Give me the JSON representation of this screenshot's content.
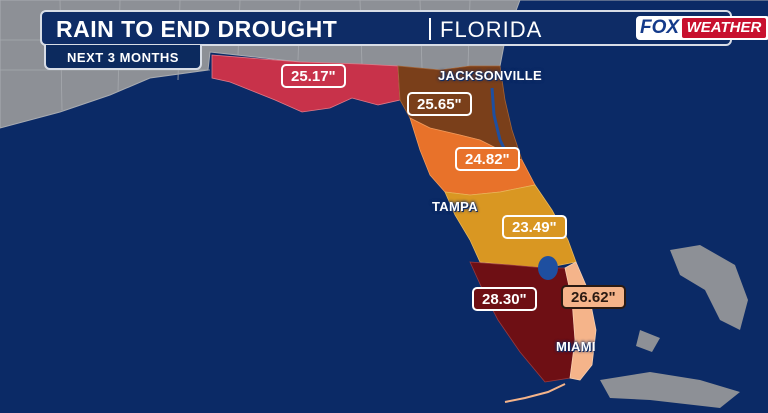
{
  "header": {
    "title": "RAIN TO END DROUGHT",
    "region": "FLORIDA",
    "period": "NEXT 3 MONTHS"
  },
  "brand": {
    "logo_left": "FOX",
    "logo_right": "WEATHER"
  },
  "regions": [
    {
      "name": "Northwest Florida",
      "amount": "25.17\"",
      "color": "#c8324a"
    },
    {
      "name": "Northeast Florida",
      "amount": "25.65\"",
      "color": "#7a3f1a"
    },
    {
      "name": "North Central Florida",
      "amount": "24.82\"",
      "color": "#e8722a"
    },
    {
      "name": "Central Florida",
      "amount": "23.49\"",
      "color": "#d99722"
    },
    {
      "name": "Southwest Florida",
      "amount": "28.30\"",
      "color": "#6e0f14"
    },
    {
      "name": "Southeast Coast",
      "amount": "26.62\"",
      "color": "#f5b48a"
    }
  ],
  "cities": [
    "JACKSONVILLE",
    "TAMPA",
    "MIAMI"
  ],
  "colors": {
    "ocean": "#0b2a66",
    "land": "#8d9096",
    "lake": "#1e4fa0"
  }
}
